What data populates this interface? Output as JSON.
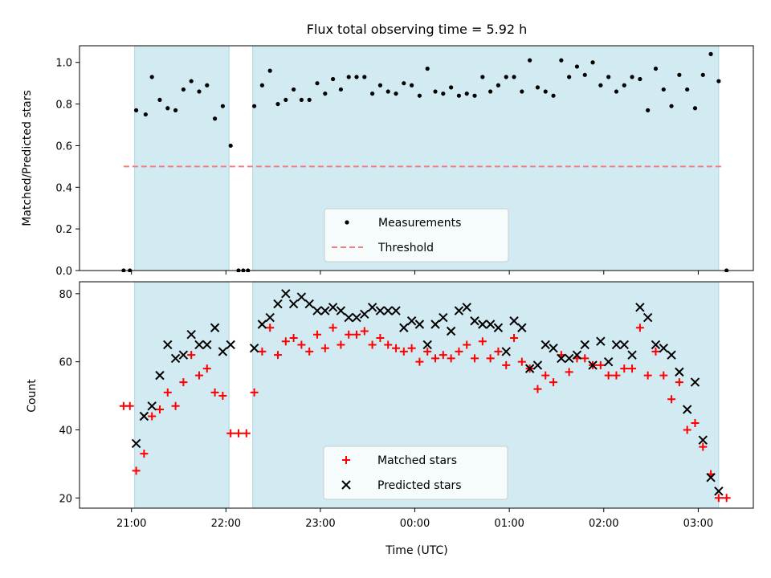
{
  "title": "Flux total observing time = 5.92 h",
  "colors": {
    "band": "#add8e6",
    "measurement": "#000000",
    "threshold": "#f08080",
    "matched": "#ff0000",
    "predicted": "#000000"
  },
  "chart_data": [
    {
      "type": "scatter",
      "ylabel": "Matched/Predicted stars",
      "xlabel": "",
      "xlim": [
        "20:27",
        "03:35"
      ],
      "ylim": [
        0,
        1.08
      ],
      "x_ticks": [
        "21:00",
        "22:00",
        "23:00",
        "00:00",
        "01:00",
        "02:00",
        "03:00"
      ],
      "y_ticks": [
        "0.0",
        "0.2",
        "0.4",
        "0.6",
        "0.8",
        "1.0"
      ],
      "observing_windows": [
        [
          "21:02",
          "22:02"
        ],
        [
          "22:17",
          "03:13"
        ]
      ],
      "legend_position": "lower center",
      "threshold": {
        "name": "Threshold",
        "value": 0.5,
        "x_range": [
          "20:55",
          "03:15"
        ]
      },
      "series": [
        {
          "name": "Measurements",
          "marker": "dot",
          "points": [
            [
              "20:55",
              0.0
            ],
            [
              "20:59",
              0.0
            ],
            [
              "21:03",
              0.77
            ],
            [
              "21:09",
              0.75
            ],
            [
              "21:13",
              0.93
            ],
            [
              "21:18",
              0.82
            ],
            [
              "21:23",
              0.78
            ],
            [
              "21:28",
              0.77
            ],
            [
              "21:33",
              0.87
            ],
            [
              "21:38",
              0.91
            ],
            [
              "21:43",
              0.86
            ],
            [
              "21:48",
              0.89
            ],
            [
              "21:53",
              0.73
            ],
            [
              "21:58",
              0.79
            ],
            [
              "22:03",
              0.6
            ],
            [
              "22:08",
              0.0
            ],
            [
              "22:11",
              0.0
            ],
            [
              "22:14",
              0.0
            ],
            [
              "22:18",
              0.79
            ],
            [
              "22:23",
              0.89
            ],
            [
              "22:28",
              0.96
            ],
            [
              "22:33",
              0.8
            ],
            [
              "22:38",
              0.82
            ],
            [
              "22:43",
              0.87
            ],
            [
              "22:48",
              0.82
            ],
            [
              "22:53",
              0.82
            ],
            [
              "22:58",
              0.9
            ],
            [
              "23:03",
              0.85
            ],
            [
              "23:08",
              0.92
            ],
            [
              "23:13",
              0.87
            ],
            [
              "23:18",
              0.93
            ],
            [
              "23:23",
              0.93
            ],
            [
              "23:28",
              0.93
            ],
            [
              "23:33",
              0.85
            ],
            [
              "23:38",
              0.89
            ],
            [
              "23:43",
              0.86
            ],
            [
              "23:48",
              0.85
            ],
            [
              "23:53",
              0.9
            ],
            [
              "23:58",
              0.89
            ],
            [
              "00:03",
              0.84
            ],
            [
              "00:08",
              0.97
            ],
            [
              "00:13",
              0.86
            ],
            [
              "00:18",
              0.85
            ],
            [
              "00:23",
              0.88
            ],
            [
              "00:28",
              0.84
            ],
            [
              "00:33",
              0.85
            ],
            [
              "00:38",
              0.84
            ],
            [
              "00:43",
              0.93
            ],
            [
              "00:48",
              0.86
            ],
            [
              "00:53",
              0.89
            ],
            [
              "00:58",
              0.93
            ],
            [
              "01:03",
              0.93
            ],
            [
              "01:08",
              0.86
            ],
            [
              "01:13",
              1.01
            ],
            [
              "01:18",
              0.88
            ],
            [
              "01:23",
              0.86
            ],
            [
              "01:28",
              0.84
            ],
            [
              "01:33",
              1.01
            ],
            [
              "01:38",
              0.93
            ],
            [
              "01:43",
              0.98
            ],
            [
              "01:48",
              0.94
            ],
            [
              "01:53",
              1.0
            ],
            [
              "01:58",
              0.89
            ],
            [
              "02:03",
              0.93
            ],
            [
              "02:08",
              0.86
            ],
            [
              "02:13",
              0.89
            ],
            [
              "02:18",
              0.93
            ],
            [
              "02:23",
              0.92
            ],
            [
              "02:28",
              0.77
            ],
            [
              "02:33",
              0.97
            ],
            [
              "02:38",
              0.87
            ],
            [
              "02:43",
              0.79
            ],
            [
              "02:48",
              0.94
            ],
            [
              "02:53",
              0.87
            ],
            [
              "02:58",
              0.78
            ],
            [
              "03:03",
              0.94
            ],
            [
              "03:08",
              1.04
            ],
            [
              "03:13",
              0.91
            ],
            [
              "03:18",
              0.0
            ]
          ]
        }
      ]
    },
    {
      "type": "scatter",
      "xlabel": "Time (UTC)",
      "ylabel": "Count",
      "xlim": [
        "20:27",
        "03:35"
      ],
      "ylim": [
        17,
        83.5
      ],
      "x_ticks": [
        "21:00",
        "22:00",
        "23:00",
        "00:00",
        "01:00",
        "02:00",
        "03:00"
      ],
      "y_ticks": [
        "20",
        "40",
        "60",
        "80"
      ],
      "observing_windows": [
        [
          "21:02",
          "22:02"
        ],
        [
          "22:17",
          "03:13"
        ]
      ],
      "legend_position": "lower center",
      "series": [
        {
          "name": "Matched stars",
          "marker": "plus",
          "points": [
            [
              "20:55",
              47
            ],
            [
              "20:59",
              47
            ],
            [
              "21:03",
              28
            ],
            [
              "21:08",
              33
            ],
            [
              "21:13",
              44
            ],
            [
              "21:18",
              46
            ],
            [
              "21:23",
              51
            ],
            [
              "21:28",
              47
            ],
            [
              "21:33",
              54
            ],
            [
              "21:38",
              62
            ],
            [
              "21:43",
              56
            ],
            [
              "21:48",
              58
            ],
            [
              "21:53",
              51
            ],
            [
              "21:58",
              50
            ],
            [
              "22:03",
              39
            ],
            [
              "22:08",
              39
            ],
            [
              "22:13",
              39
            ],
            [
              "22:18",
              51
            ],
            [
              "22:23",
              63
            ],
            [
              "22:28",
              70
            ],
            [
              "22:33",
              62
            ],
            [
              "22:38",
              66
            ],
            [
              "22:43",
              67
            ],
            [
              "22:48",
              65
            ],
            [
              "22:53",
              63
            ],
            [
              "22:58",
              68
            ],
            [
              "23:03",
              64
            ],
            [
              "23:08",
              70
            ],
            [
              "23:13",
              65
            ],
            [
              "23:18",
              68
            ],
            [
              "23:23",
              68
            ],
            [
              "23:28",
              69
            ],
            [
              "23:33",
              65
            ],
            [
              "23:38",
              67
            ],
            [
              "23:43",
              65
            ],
            [
              "23:48",
              64
            ],
            [
              "23:53",
              63
            ],
            [
              "23:58",
              64
            ],
            [
              "00:03",
              60
            ],
            [
              "00:08",
              63
            ],
            [
              "00:13",
              61
            ],
            [
              "00:18",
              62
            ],
            [
              "00:23",
              61
            ],
            [
              "00:28",
              63
            ],
            [
              "00:33",
              65
            ],
            [
              "00:38",
              61
            ],
            [
              "00:43",
              66
            ],
            [
              "00:48",
              61
            ],
            [
              "00:53",
              63
            ],
            [
              "00:58",
              59
            ],
            [
              "01:03",
              67
            ],
            [
              "01:08",
              60
            ],
            [
              "01:13",
              58
            ],
            [
              "01:18",
              52
            ],
            [
              "01:23",
              56
            ],
            [
              "01:28",
              54
            ],
            [
              "01:33",
              62
            ],
            [
              "01:38",
              57
            ],
            [
              "01:43",
              61
            ],
            [
              "01:48",
              61
            ],
            [
              "01:53",
              59
            ],
            [
              "01:58",
              59
            ],
            [
              "02:03",
              56
            ],
            [
              "02:08",
              56
            ],
            [
              "02:13",
              58
            ],
            [
              "02:18",
              58
            ],
            [
              "02:23",
              70
            ],
            [
              "02:28",
              56
            ],
            [
              "02:33",
              63
            ],
            [
              "02:38",
              56
            ],
            [
              "02:43",
              49
            ],
            [
              "02:48",
              54
            ],
            [
              "02:53",
              40
            ],
            [
              "02:58",
              42
            ],
            [
              "03:03",
              35
            ],
            [
              "03:08",
              27
            ],
            [
              "03:13",
              20
            ],
            [
              "03:18",
              20
            ]
          ]
        },
        {
          "name": "Predicted stars",
          "marker": "x",
          "points": [
            [
              "21:03",
              36
            ],
            [
              "21:08",
              44
            ],
            [
              "21:13",
              47
            ],
            [
              "21:18",
              56
            ],
            [
              "21:23",
              65
            ],
            [
              "21:28",
              61
            ],
            [
              "21:33",
              62
            ],
            [
              "21:38",
              68
            ],
            [
              "21:43",
              65
            ],
            [
              "21:48",
              65
            ],
            [
              "21:53",
              70
            ],
            [
              "21:58",
              63
            ],
            [
              "22:03",
              65
            ],
            [
              "22:18",
              64
            ],
            [
              "22:23",
              71
            ],
            [
              "22:28",
              73
            ],
            [
              "22:33",
              77
            ],
            [
              "22:38",
              80
            ],
            [
              "22:43",
              77
            ],
            [
              "22:48",
              79
            ],
            [
              "22:53",
              77
            ],
            [
              "22:58",
              75
            ],
            [
              "23:03",
              75
            ],
            [
              "23:08",
              76
            ],
            [
              "23:13",
              75
            ],
            [
              "23:18",
              73
            ],
            [
              "23:23",
              73
            ],
            [
              "23:28",
              74
            ],
            [
              "23:33",
              76
            ],
            [
              "23:38",
              75
            ],
            [
              "23:43",
              75
            ],
            [
              "23:48",
              75
            ],
            [
              "23:53",
              70
            ],
            [
              "23:58",
              72
            ],
            [
              "00:03",
              71
            ],
            [
              "00:08",
              65
            ],
            [
              "00:13",
              71
            ],
            [
              "00:18",
              73
            ],
            [
              "00:23",
              69
            ],
            [
              "00:28",
              75
            ],
            [
              "00:33",
              76
            ],
            [
              "00:38",
              72
            ],
            [
              "00:43",
              71
            ],
            [
              "00:48",
              71
            ],
            [
              "00:53",
              70
            ],
            [
              "00:58",
              63
            ],
            [
              "01:03",
              72
            ],
            [
              "01:08",
              70
            ],
            [
              "01:13",
              58
            ],
            [
              "01:18",
              59
            ],
            [
              "01:23",
              65
            ],
            [
              "01:28",
              64
            ],
            [
              "01:33",
              61
            ],
            [
              "01:38",
              61
            ],
            [
              "01:43",
              62
            ],
            [
              "01:48",
              65
            ],
            [
              "01:53",
              59
            ],
            [
              "01:58",
              66
            ],
            [
              "02:03",
              60
            ],
            [
              "02:08",
              65
            ],
            [
              "02:13",
              65
            ],
            [
              "02:18",
              62
            ],
            [
              "02:23",
              76
            ],
            [
              "02:28",
              73
            ],
            [
              "02:33",
              65
            ],
            [
              "02:38",
              64
            ],
            [
              "02:43",
              62
            ],
            [
              "02:48",
              57
            ],
            [
              "02:53",
              46
            ],
            [
              "02:58",
              54
            ],
            [
              "03:03",
              37
            ],
            [
              "03:08",
              26
            ],
            [
              "03:13",
              22
            ]
          ]
        }
      ]
    }
  ]
}
